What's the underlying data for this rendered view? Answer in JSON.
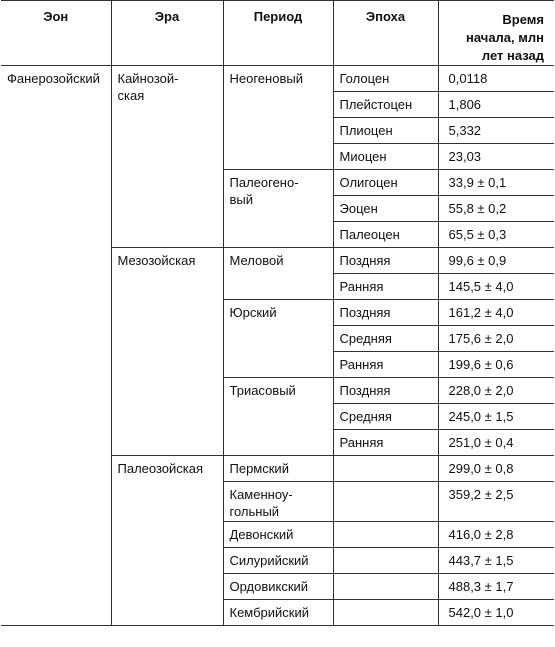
{
  "headers": {
    "eon": "Эон",
    "era": "Эра",
    "period": "Период",
    "epoch": "Эпоха",
    "time_line1": "Время",
    "time_line2": "начала, млн",
    "time_line3": "лет назад"
  },
  "eon": "Фанерозойский",
  "eras": {
    "cenozoic_1": "Кайнозой-",
    "cenozoic_2": "ская",
    "mesozoic": "Мезозойская",
    "paleozoic": "Палеозойская"
  },
  "periods": {
    "neogene": "Неогеновый",
    "paleogene_1": "Палеогено-",
    "paleogene_2": "вый",
    "cretaceous": "Меловой",
    "jurassic": "Юрский",
    "triassic": "Триасовый",
    "permian": "Пермский",
    "carboniferous_1": "Каменноу-",
    "carboniferous_2": "гольный",
    "devonian": "Девонский",
    "silurian": "Силурийский",
    "ordovician": "Ордовикский",
    "cambrian": "Кембрийский"
  },
  "rows": [
    {
      "epoch": "Голоцен",
      "time": "0,0118"
    },
    {
      "epoch": "Плейстоцен",
      "time": "1,806"
    },
    {
      "epoch": "Плиоцен",
      "time": "5,332"
    },
    {
      "epoch": "Миоцен",
      "time": "23,03"
    },
    {
      "epoch": "Олигоцен",
      "time": "33,9 ± 0,1"
    },
    {
      "epoch": "Эоцен",
      "time": "55,8 ± 0,2"
    },
    {
      "epoch": "Палеоцен",
      "time": "65,5 ± 0,3"
    },
    {
      "epoch": "Поздняя",
      "time": "99,6 ± 0,9"
    },
    {
      "epoch": "Ранняя",
      "time": "145,5 ± 4,0"
    },
    {
      "epoch": "Поздняя",
      "time": "161,2 ± 4,0"
    },
    {
      "epoch": "Средняя",
      "time": "175,6 ± 2,0"
    },
    {
      "epoch": "Ранняя",
      "time": "199,6 ± 0,6"
    },
    {
      "epoch": "Поздняя",
      "time": "228,0 ± 2,0"
    },
    {
      "epoch": "Средняя",
      "time": "245,0 ± 1,5"
    },
    {
      "epoch": "Ранняя",
      "time": "251,0 ± 0,4"
    },
    {
      "epoch": "",
      "time": "299,0 ± 0,8"
    },
    {
      "epoch": "",
      "time": "359,2 ± 2,5"
    },
    {
      "epoch": "",
      "time": "416,0 ± 2,8"
    },
    {
      "epoch": "",
      "time": "443,7 ± 1,5"
    },
    {
      "epoch": "",
      "time": "488,3 ± 1,7"
    },
    {
      "epoch": "",
      "time": "542,0 ± 1,0"
    }
  ]
}
